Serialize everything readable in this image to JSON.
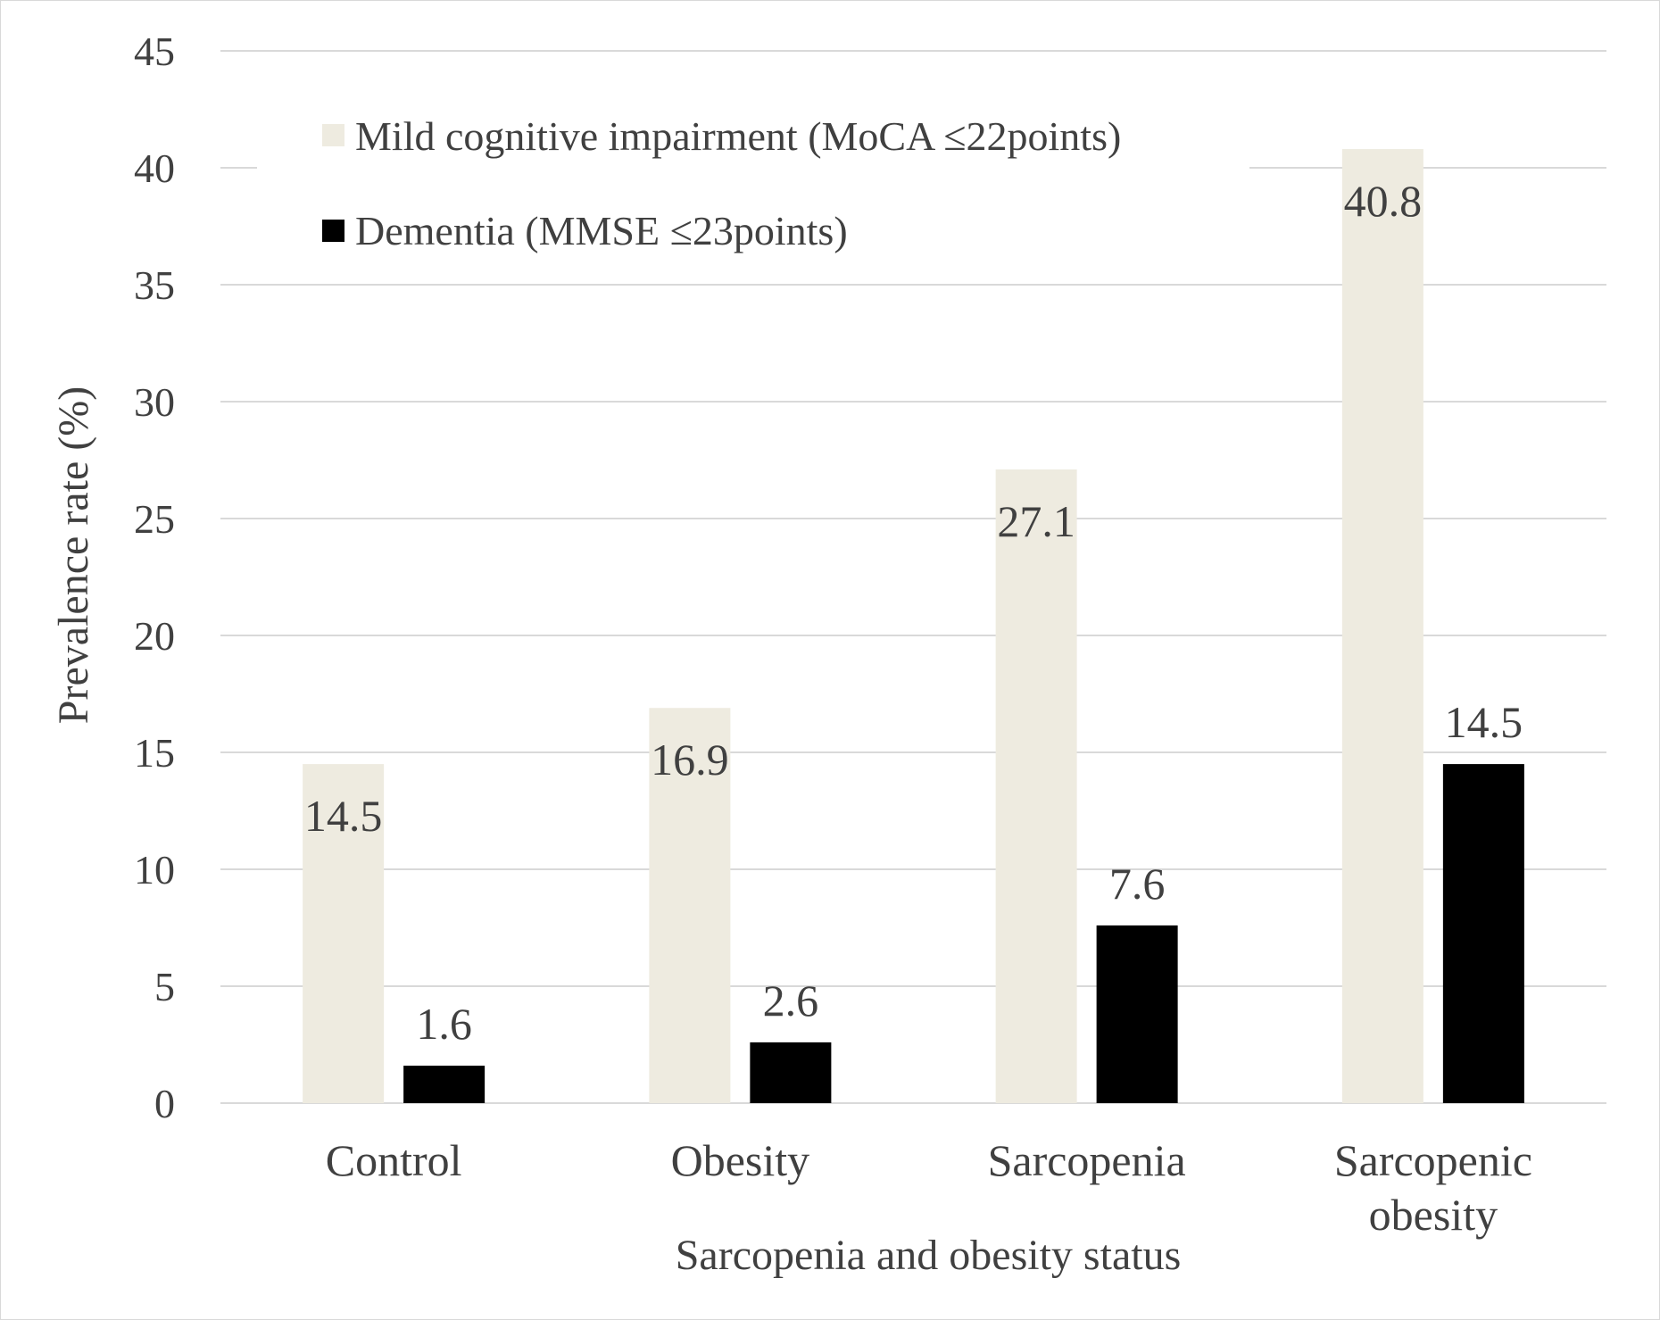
{
  "chart_data": {
    "type": "bar",
    "title": "",
    "xlabel": "Sarcopenia and obesity status",
    "ylabel": "Prevalence rate (%)",
    "ylim": [
      0,
      45
    ],
    "yticks": [
      0,
      5,
      10,
      15,
      20,
      25,
      30,
      35,
      40,
      45
    ],
    "grid": true,
    "legend_position": "top-left",
    "categories": [
      [
        "Control"
      ],
      [
        "Obesity"
      ],
      [
        "Sarcopenia"
      ],
      [
        "Sarcopenic",
        "obesity"
      ]
    ],
    "series": [
      {
        "name": "Mild cognitive impairment (MoCA ≤22points)",
        "color": "#eeebe0",
        "values": [
          14.5,
          16.9,
          27.1,
          40.8
        ],
        "labels": [
          "14.5",
          "16.9",
          "27.1",
          "40.8"
        ]
      },
      {
        "name": "Dementia (MMSE ≤23points)",
        "color": "#000000",
        "values": [
          1.6,
          2.6,
          7.6,
          14.5
        ],
        "labels": [
          "1.6",
          "2.6",
          "7.6",
          "14.5"
        ]
      }
    ],
    "gridline_color": "#d9d9d9",
    "text_color": "#404040"
  }
}
